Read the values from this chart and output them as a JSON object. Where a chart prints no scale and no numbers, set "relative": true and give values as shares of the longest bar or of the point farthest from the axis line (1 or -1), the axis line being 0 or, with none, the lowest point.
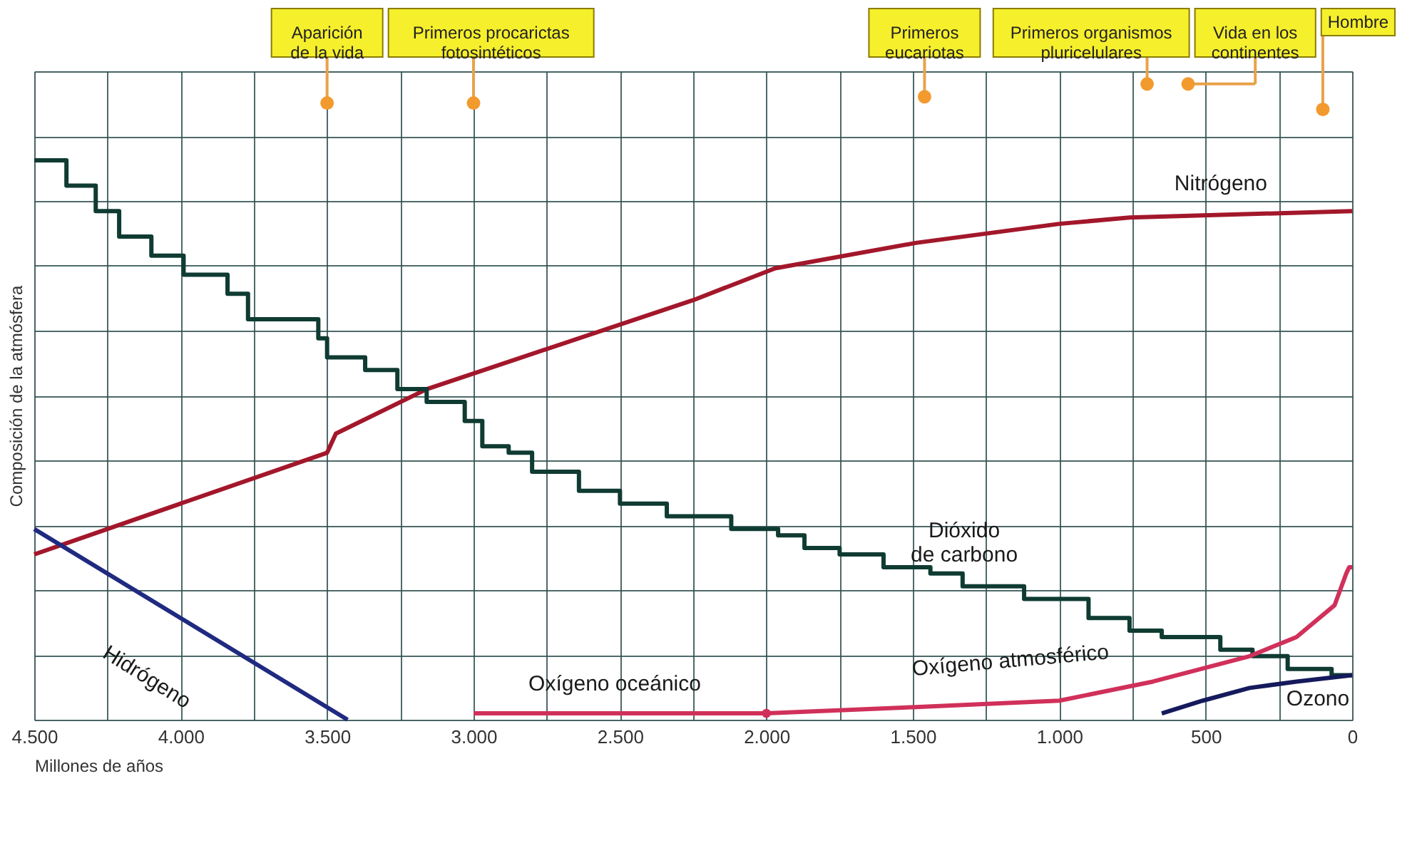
{
  "chart_data": {
    "type": "line",
    "relative": true,
    "xlabel": "Millones de años",
    "ylabel": "Composición de la atmósfera",
    "xlim": [
      4500,
      0
    ],
    "xticks": [
      {
        "value": 4500,
        "label": "4.500"
      },
      {
        "value": 4250,
        "label": null
      },
      {
        "value": 4000,
        "label": "4.000"
      },
      {
        "value": 3750,
        "label": null
      },
      {
        "value": 3500,
        "label": "3.500"
      },
      {
        "value": 3250,
        "label": null
      },
      {
        "value": 3000,
        "label": "3.000"
      },
      {
        "value": 2750,
        "label": null
      },
      {
        "value": 2500,
        "label": "2.500"
      },
      {
        "value": 2250,
        "label": null
      },
      {
        "value": 2000,
        "label": "2.000"
      },
      {
        "value": 1750,
        "label": null
      },
      {
        "value": 1500,
        "label": "1.500"
      },
      {
        "value": 1250,
        "label": null
      },
      {
        "value": 1000,
        "label": "1.000"
      },
      {
        "value": 750,
        "label": null
      },
      {
        "value": 500,
        "label": "500"
      },
      {
        "value": 250,
        "label": null
      },
      {
        "value": 0,
        "label": "0"
      }
    ],
    "grid": true,
    "tick_labels": "x",
    "line_style": "solid",
    "series": [
      {
        "name": "Nitrógeno",
        "color": "#a3172b",
        "x": [
          4500,
          3500,
          3470,
          3160,
          2250,
          1970,
          1490,
          1000,
          760,
          0
        ],
        "values": [
          0.26,
          0.42,
          0.45,
          0.52,
          0.66,
          0.71,
          0.75,
          0.78,
          0.79,
          0.8
        ]
      },
      {
        "name": "Dióxido de carbono",
        "type": "step",
        "color": "#0f3b32",
        "x": [
          4500,
          4390,
          4290,
          4210,
          4100,
          3990,
          3840,
          3770,
          3530,
          3500,
          3370,
          3260,
          3160,
          3030,
          2970,
          2880,
          2800,
          2640,
          2500,
          2340,
          2120,
          1960,
          1870,
          1750,
          1600,
          1440,
          1330,
          1120,
          900,
          760,
          650,
          450,
          340,
          220,
          70,
          0
        ],
        "values": [
          0.88,
          0.84,
          0.8,
          0.76,
          0.73,
          0.7,
          0.67,
          0.63,
          0.6,
          0.57,
          0.55,
          0.52,
          0.5,
          0.47,
          0.43,
          0.42,
          0.39,
          0.36,
          0.34,
          0.32,
          0.3,
          0.29,
          0.27,
          0.26,
          0.24,
          0.23,
          0.21,
          0.19,
          0.16,
          0.14,
          0.13,
          0.11,
          0.1,
          0.08,
          0.07,
          0.07
        ]
      },
      {
        "name": "Hidrógeno",
        "color": "#1f2a80",
        "x": [
          4500,
          3430
        ],
        "values": [
          0.3,
          0
        ]
      },
      {
        "name": "Oxígeno oceánico",
        "color": "#d0305a",
        "x": [
          3000,
          2000
        ],
        "values": [
          0.01,
          0.01
        ]
      },
      {
        "name": "Oxígeno atmosférico",
        "color": "#d0305a",
        "x": [
          2000,
          1490,
          1000,
          680,
          350,
          190,
          60,
          20,
          10,
          0
        ],
        "values": [
          0.01,
          0.02,
          0.03,
          0.06,
          0.1,
          0.13,
          0.18,
          0.23,
          0.24,
          0.24
        ]
      },
      {
        "name": "Ozono",
        "color": "#141a5c",
        "x": [
          650,
          510,
          350,
          190,
          0
        ],
        "values": [
          0.01,
          0.03,
          0.05,
          0.06,
          0.07
        ]
      },
      {
        "type": "scatter",
        "marker": "circle",
        "color": "#d0305a",
        "x": [
          2000
        ],
        "values": [
          0.01
        ]
      },
      {
        "type": "scatter",
        "marker": "circle",
        "color": "#f29a2e",
        "x": [
          3500,
          3000,
          1460,
          700,
          560,
          100
        ],
        "values": [
          0.97,
          0.97,
          0.98,
          1,
          1,
          0.96
        ]
      }
    ],
    "annotations": [
      "Aparición de la vida",
      "Primeros procarictas fotosintéticos",
      "Primeros eucariotas",
      "Primeros organismos pluricelulares",
      "Vida en los continentes",
      "Hombre"
    ]
  }
}
